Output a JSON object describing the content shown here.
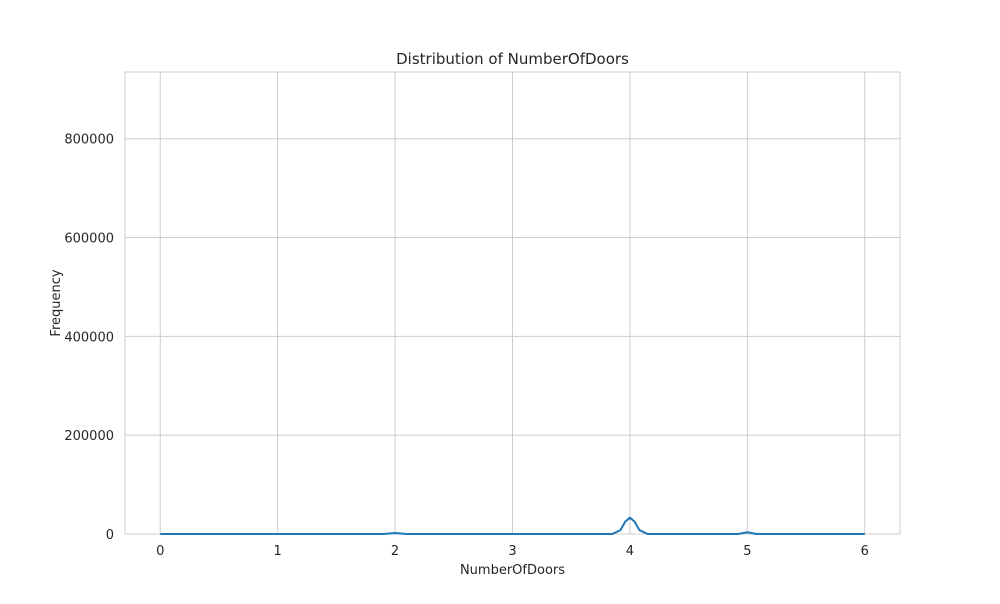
{
  "chart_data": {
    "type": "line",
    "title": "Distribution of NumberOfDoors",
    "xlabel": "NumberOfDoors",
    "ylabel": "Frequency",
    "xlim": [
      -0.3,
      6.3
    ],
    "ylim": [
      0,
      935000
    ],
    "xticks": [
      0,
      1,
      2,
      3,
      4,
      5,
      6
    ],
    "yticks": [
      0,
      200000,
      400000,
      600000,
      800000
    ],
    "grid": true,
    "legend": "none",
    "series": [
      {
        "color": "#1f77b4",
        "x": [
          0,
          0.5,
          1,
          1.5,
          1.9,
          2.0,
          2.1,
          2.5,
          3,
          3.5,
          3.85,
          3.92,
          3.96,
          4.0,
          4.04,
          4.08,
          4.15,
          4.5,
          4.92,
          5.0,
          5.08,
          5.5,
          6
        ],
        "y": [
          0,
          0,
          0,
          0,
          0,
          2000,
          0,
          0,
          0,
          0,
          0,
          8000,
          25000,
          33000,
          25000,
          8000,
          0,
          0,
          0,
          3500,
          0,
          0,
          0
        ]
      }
    ]
  }
}
